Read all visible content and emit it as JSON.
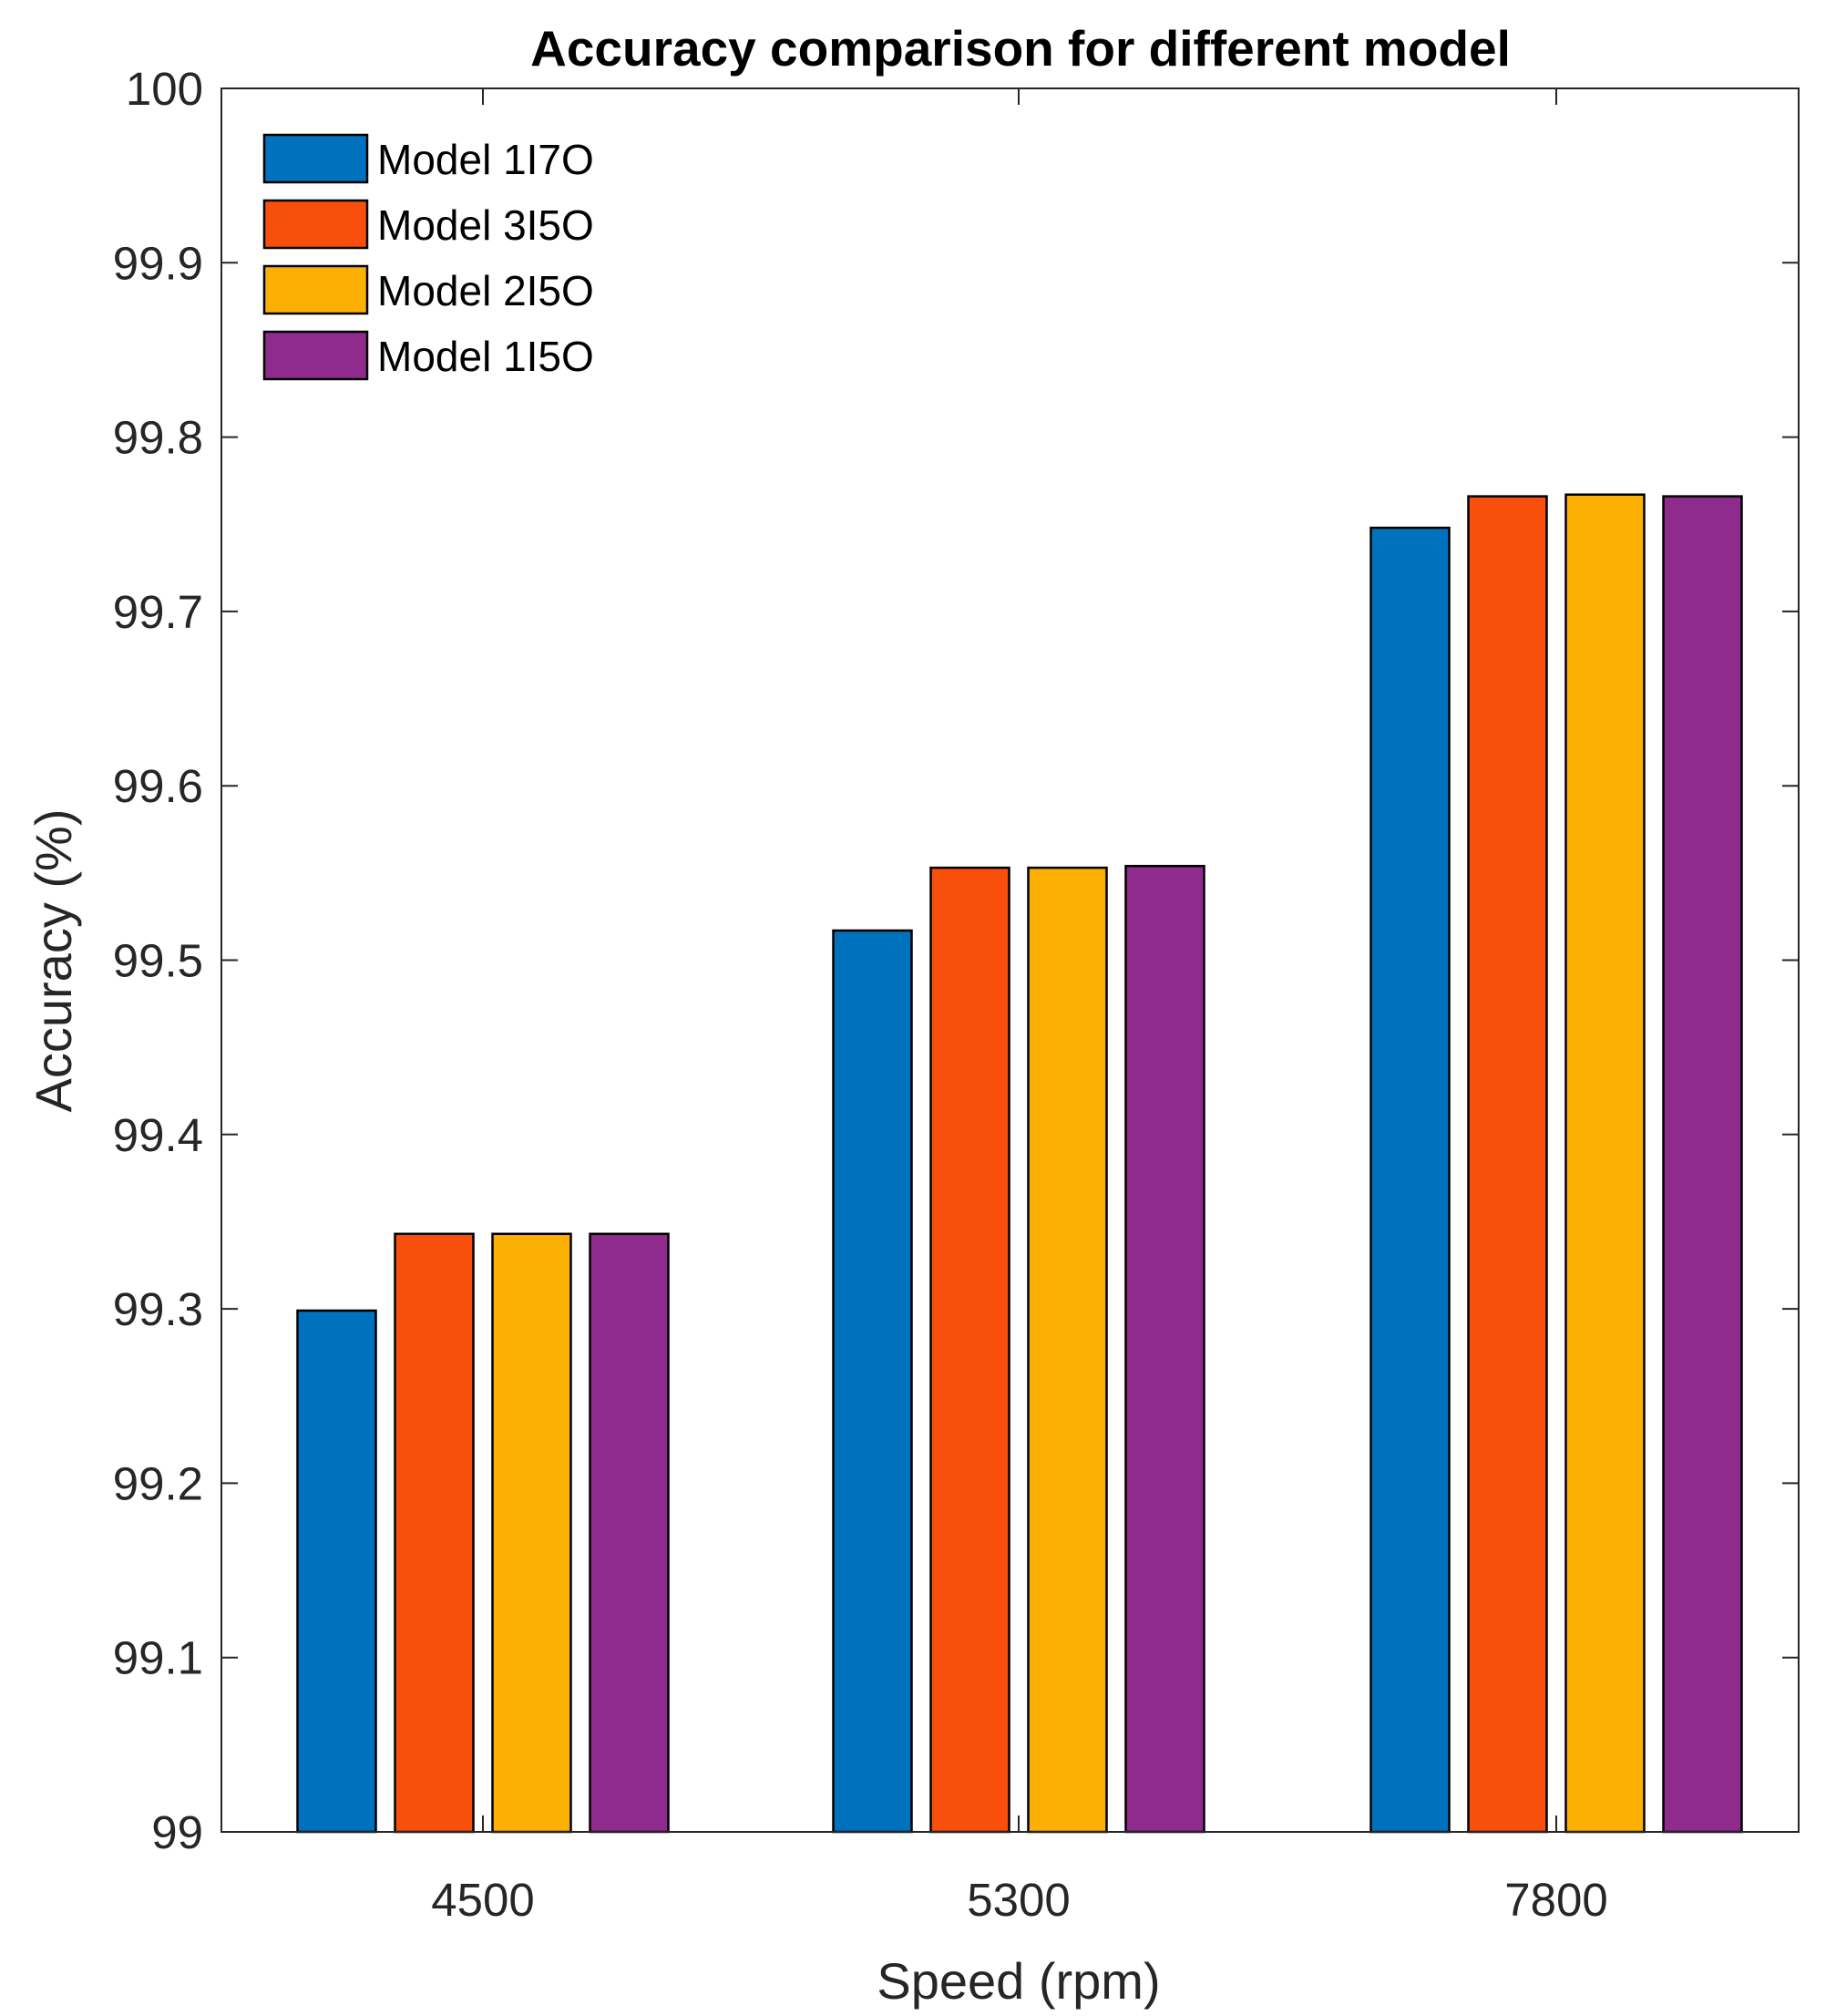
{
  "chart_data": {
    "type": "bar",
    "title": "Accuracy comparison for different model",
    "xlabel": "Speed (rpm)",
    "ylabel": "Accuracy (%)",
    "categories": [
      "4500",
      "5300",
      "7800"
    ],
    "ylim": [
      99,
      100
    ],
    "yticks": [
      "99",
      "99.1",
      "99.2",
      "99.3",
      "99.4",
      "99.5",
      "99.6",
      "99.7",
      "99.8",
      "99.9",
      "100"
    ],
    "ytick_values": [
      99,
      99.1,
      99.2,
      99.3,
      99.4,
      99.5,
      99.6,
      99.7,
      99.8,
      99.9,
      100
    ],
    "grid": false,
    "legend_position": "top-left",
    "series": [
      {
        "name": "Model 1I7O",
        "color": "#0072BD",
        "values": [
          99.299,
          99.517,
          99.748
        ]
      },
      {
        "name": "Model 3I5O",
        "color": "#F94F0C",
        "values": [
          99.343,
          99.553,
          99.766
        ]
      },
      {
        "name": "Model 2I5O",
        "color": "#FDB004",
        "values": [
          99.343,
          99.553,
          99.767
        ]
      },
      {
        "name": "Model 1I5O",
        "color": "#8E2B8D",
        "values": [
          99.343,
          99.554,
          99.766
        ]
      }
    ]
  }
}
